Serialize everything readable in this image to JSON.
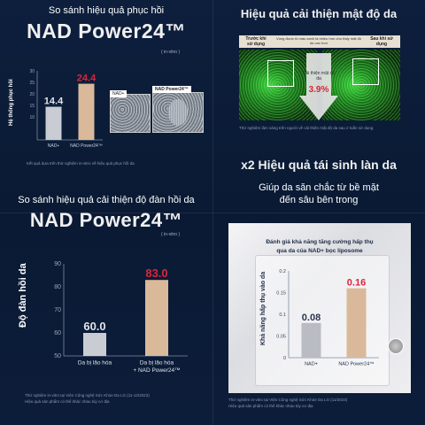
{
  "p1": {
    "title": "So sánh hiệu quả phục hồi",
    "brand": "NAD Power24™",
    "tag": "( in-vitro )",
    "ylabel": "Hệ thống phục hồi",
    "yticks": [
      "30",
      "25",
      "20",
      "15",
      "10"
    ],
    "bars": [
      {
        "label": "NAD+",
        "value": 14.4,
        "display": "14.4"
      },
      {
        "label": "NAD Power24™",
        "value": 24.4,
        "display": "24.4"
      }
    ],
    "img_left_label": "NAD+",
    "img_right_label": "NAD Power24™",
    "note": "Kết quả dựa trên thử nghiệm in-vitro về hiệu quả phục hồi da"
  },
  "p2": {
    "title": "Hiệu quả cải thiện mật độ da",
    "before": "Trước khi sử dụng",
    "middle": "Vùng được tô màu xanh là nhiều hơn cho thấy mật độ da cao hơn",
    "after": "Sau khi sử dụng",
    "arrow_text": "Cải thiện mật độ da",
    "percent": "3.9%",
    "note": "Thử nghiệm lâm sàng trên người về cải thiện mật độ da sau 2 tuần sử dụng"
  },
  "p3": {
    "title": "So sánh hiệu quả cải thiện độ đàn hồi da",
    "brand": "NAD Power24™",
    "tag": "( in-vitro )",
    "ylabel": "Độ đàn hồi da",
    "yticks": [
      "90",
      "80",
      "70",
      "60",
      "50"
    ],
    "bars": [
      {
        "label": "Da bị lão hóa",
        "value": 60.0,
        "display": "60.0"
      },
      {
        "label": "Da bị lão hóa + NAD Power24™",
        "value": 83.0,
        "display": "83.0"
      }
    ],
    "note1": "Thử nghiệm in-vitro tại Viện Công nghệ Sức Khỏe Da LG (11-12/2023)",
    "note2": "Hiệu quả sản phẩm có thể khác nhau tùy cơ địa"
  },
  "p4": {
    "title": "x2 Hiệu quả tái sinh làn da",
    "sub1": "Giúp da săn chắc từ bề mặt",
    "sub2": "đến sâu bên trong",
    "card_title1": "Đánh giá khả năng tăng cường hấp thụ",
    "card_title2": "qua da của NAD+ bọc liposome",
    "ylabel": "Khả năng hấp thụ vào da",
    "yticks": [
      "0.2",
      "0.15",
      "0.1",
      "0.05",
      "0"
    ],
    "bars": [
      {
        "label": "NAD+",
        "value": 0.08,
        "display": "0.08"
      },
      {
        "label": "NAD Power24™",
        "value": 0.16,
        "display": "0.16"
      }
    ],
    "note1": "Thử nghiệm in-vitro tại Viện Công nghệ Sức Khỏe Da LG (11/2023)",
    "note2": "Hiệu quả sản phẩm có thể khác nhau tùy cơ địa"
  },
  "colors": {
    "accent_red": "#d9263a",
    "bar_gray": "#c9ccd2",
    "bar_tan": "#d9b99a"
  },
  "chart_data": [
    {
      "type": "bar",
      "categories": [
        "NAD+",
        "NAD Power24™"
      ],
      "values": [
        14.4,
        24.4
      ],
      "title": "So sánh hiệu quả phục hồi",
      "ylabel": "Hệ thống phục hồi",
      "ylim": [
        0,
        30
      ]
    },
    {
      "type": "bar",
      "categories": [
        "Da bị lão hóa",
        "Da bị lão hóa + NAD Power24™"
      ],
      "values": [
        60.0,
        83.0
      ],
      "title": "So sánh hiệu quả cải thiện độ đàn hồi da",
      "ylabel": "Độ đàn hồi da",
      "ylim": [
        50,
        90
      ]
    },
    {
      "type": "bar",
      "categories": [
        "NAD+",
        "NAD Power24™"
      ],
      "values": [
        0.08,
        0.16
      ],
      "title": "Đánh giá khả năng tăng cường hấp thụ qua da của NAD+ bọc liposome",
      "ylabel": "Khả năng hấp thụ vào da",
      "ylim": [
        0,
        0.2
      ]
    }
  ]
}
